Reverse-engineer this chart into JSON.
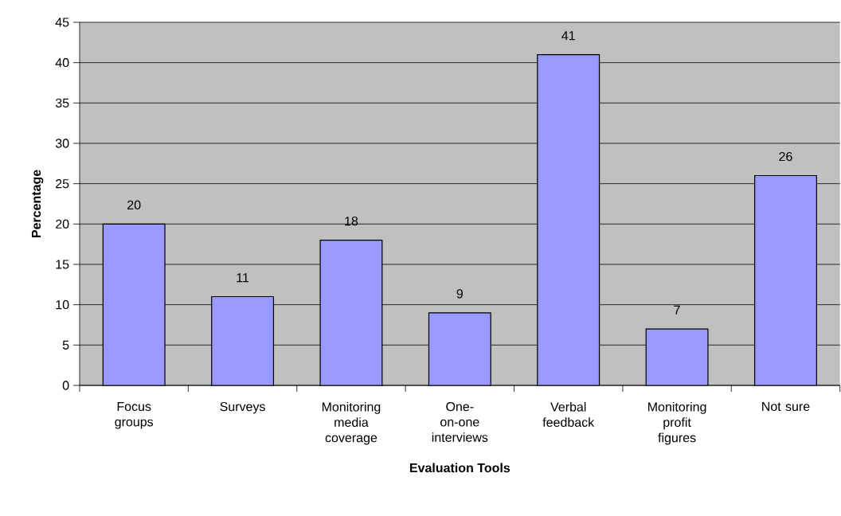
{
  "chart_data": {
    "type": "bar",
    "xlabel": "Evaluation Tools",
    "ylabel": "Percentage",
    "categories": [
      "Focus groups",
      "Surveys",
      "Monitoring media coverage",
      "One-on-one interviews",
      "Verbal feedback",
      "Monitoring profit figures",
      "Not sure"
    ],
    "values": [
      20,
      11,
      18,
      9,
      41,
      7,
      26
    ],
    "color": "#9999ff",
    "ylim": [
      0,
      45
    ],
    "yticks": [
      0,
      5,
      10,
      15,
      20,
      25,
      30,
      35,
      40,
      45
    ],
    "grid": "y",
    "data_labels": true
  }
}
